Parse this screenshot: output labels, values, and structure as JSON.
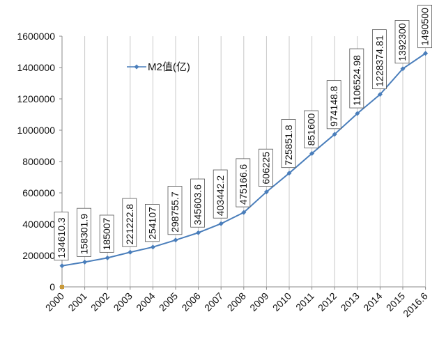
{
  "chart_data": {
    "type": "line",
    "title": "",
    "xlabel": "",
    "ylabel": "",
    "categories": [
      "2000",
      "2001",
      "2002",
      "2003",
      "2004",
      "2005",
      "2006",
      "2007",
      "2008",
      "2009",
      "2010",
      "2011",
      "2012",
      "2013",
      "2014",
      "2015",
      "2016.6"
    ],
    "series": [
      {
        "name": "M2值(亿)",
        "color": "#4a7ebb",
        "values": [
          134610.3,
          158301.9,
          185007,
          221222.8,
          254107,
          298755.7,
          345603.6,
          403442.2,
          475166.6,
          606225,
          725851.8,
          851600,
          974148.8,
          1106524.98,
          1228374.81,
          1392300,
          1490500
        ],
        "labels": [
          "134610.3",
          "158301.9",
          "185007",
          "221222.8",
          "254107",
          "298755.7",
          "345603.6",
          "403442.2",
          "475166.6",
          "606225",
          "725851.8",
          "851600",
          "974148.8",
          "1106524.98",
          "1228374.81",
          "1392300",
          "1490500"
        ]
      }
    ],
    "ylim": [
      0,
      1600000
    ],
    "yticks": [
      "0",
      "200000",
      "400000",
      "600000",
      "800000",
      "1000000",
      "1200000",
      "1400000",
      "1600000"
    ],
    "grid": "vertical",
    "legend_position": "top-left inside plot"
  }
}
